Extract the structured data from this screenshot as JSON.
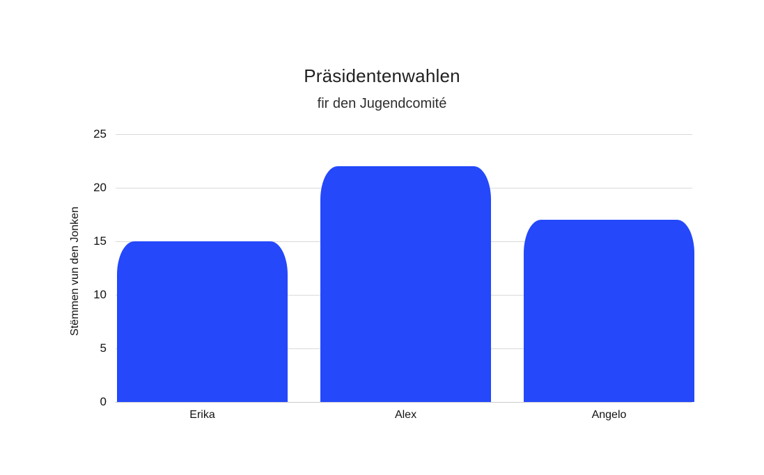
{
  "chart_data": {
    "type": "bar",
    "title": "Präsidentenwahlen",
    "subtitle": "fir den Jugendcomité",
    "ylabel": "Stëmmen vun den Jonken",
    "xlabel": "",
    "categories": [
      "Erika",
      "Alex",
      "Angelo"
    ],
    "values": [
      15,
      22,
      17
    ],
    "yticks": [
      0,
      5,
      10,
      15,
      20,
      25
    ],
    "ylim": [
      0,
      25
    ],
    "grid": true,
    "legend": "none",
    "colors": {
      "bar": "#2448fa",
      "gridline": "#d9d9d9",
      "baseline": "#cccccc",
      "text": "#111111",
      "background": "#ffffff"
    }
  }
}
